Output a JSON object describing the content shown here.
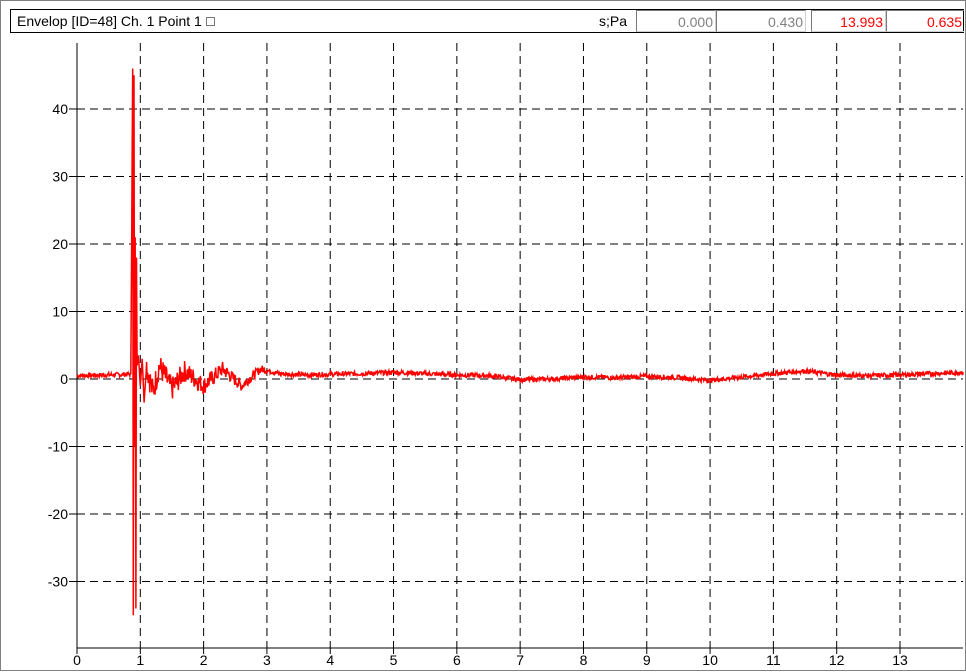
{
  "header": {
    "title": "Envelop [ID=48]  Ch. 1 Point 1",
    "units": "s;Pa",
    "readouts": [
      {
        "value": "0.000",
        "color": "#808080"
      },
      {
        "value": "0.430",
        "color": "#808080"
      },
      {
        "value": "13.993",
        "color": "#ff0000"
      },
      {
        "value": "0.635",
        "color": "#ff0000"
      }
    ]
  },
  "chart_data": {
    "type": "line",
    "xlim": [
      0,
      14
    ],
    "ylim": [
      -39,
      49
    ],
    "x_ticks": [
      "0",
      "1",
      "2",
      "3",
      "4",
      "5",
      "6",
      "7",
      "8",
      "9",
      "10",
      "11",
      "12",
      "13"
    ],
    "y_ticks": [
      "40",
      "30",
      "20",
      "10",
      "0",
      "-10",
      "-20",
      "-30"
    ],
    "grid": true,
    "series": [
      {
        "color": "#ff0000",
        "x": [
          0,
          0.5,
          0.85,
          0.88,
          0.89,
          0.9,
          0.91,
          0.92,
          0.93,
          0.94,
          0.95,
          0.97,
          1.0,
          1.03,
          1.06,
          1.1,
          1.2,
          1.3,
          1.5,
          1.7,
          2.0,
          2.3,
          2.6,
          2.9,
          3.2,
          3.6,
          4.0,
          4.5,
          5.0,
          5.5,
          6.0,
          6.5,
          7.0,
          7.5,
          8.0,
          8.5,
          9.0,
          9.5,
          10.0,
          10.5,
          11.0,
          11.5,
          12.0,
          12.5,
          13.0,
          13.5,
          14.0
        ],
        "y": [
          0.5,
          0.6,
          0.7,
          46,
          -35,
          45,
          -10,
          21,
          -34,
          18,
          2,
          3.5,
          -1,
          3,
          -3.5,
          2,
          -2,
          2,
          -1.5,
          1.2,
          -1,
          1.5,
          -1,
          1.5,
          0.8,
          0.6,
          0.7,
          0.8,
          1.0,
          0.8,
          0.6,
          0.5,
          -0.1,
          0.0,
          0.3,
          0.2,
          0.4,
          0.2,
          -0.2,
          0.3,
          0.8,
          1.2,
          0.6,
          0.5,
          0.6,
          0.8,
          1.0
        ]
      }
    ]
  }
}
